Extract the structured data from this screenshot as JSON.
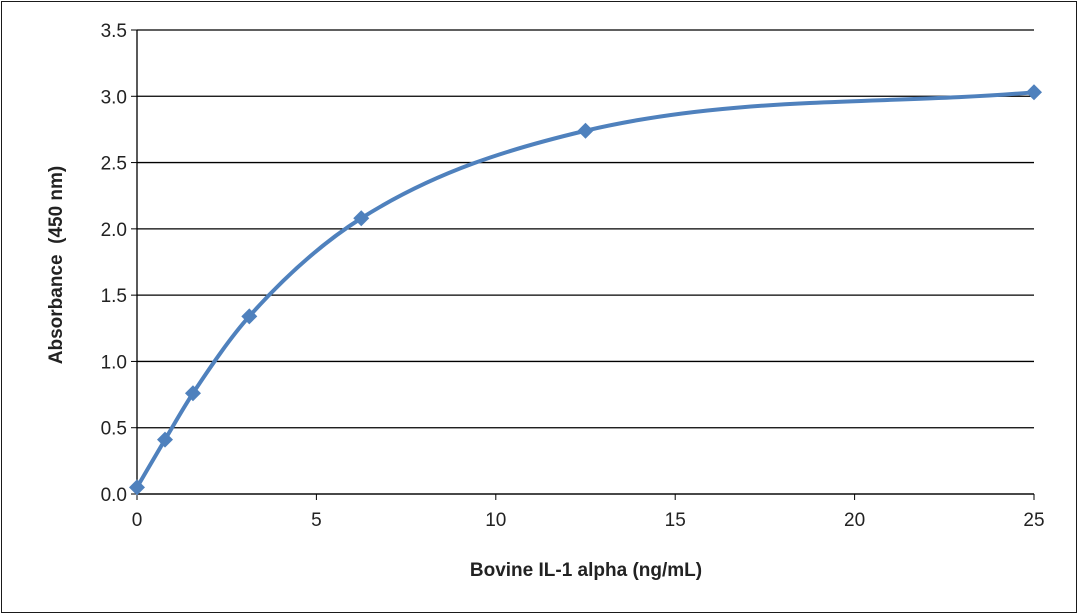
{
  "chart_data": {
    "type": "line",
    "xlabel": "Bovine IL-1 alpha (ng/mL)",
    "ylabel": "Absorbance  (450 nm)",
    "xlim": [
      0,
      25
    ],
    "ylim": [
      0,
      3.5
    ],
    "x_ticks": [
      "0",
      "5",
      "10",
      "15",
      "20",
      "25"
    ],
    "y_ticks": [
      "0.0",
      "0.5",
      "1.0",
      "1.5",
      "2.0",
      "2.5",
      "3.0",
      "3.5"
    ],
    "grid": "horizontal",
    "legend": "none",
    "marker": "diamond",
    "smooth": true,
    "color": "#4f81bd",
    "series": [
      {
        "x": [
          0,
          0.78,
          1.56,
          3.13,
          6.25,
          12.5,
          25
        ],
        "y": [
          0.05,
          0.41,
          0.76,
          1.34,
          2.08,
          2.74,
          3.03
        ]
      }
    ]
  }
}
